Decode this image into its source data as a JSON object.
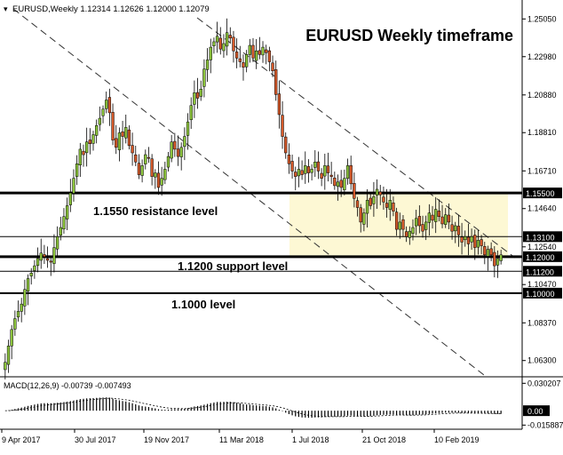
{
  "header": {
    "symbol_info": "EURUSD,Weekly  1.12314 1.12626 1.12000 1.12079",
    "big_title": "EURUSD Weekly timeframe"
  },
  "annotations": {
    "resistance_label": "1.1550 resistance level",
    "support_label": "1.1200 support level",
    "level_1000_label": "1.1000 level"
  },
  "colors": {
    "bull": "#8cc43c",
    "bear": "#d4592a",
    "zone": "#fdf8d4",
    "price_tag_bg": "#000000",
    "price_tag_text": "#ffffff"
  },
  "price_axis": {
    "min": 1.057,
    "max": 1.257,
    "ticks": [
      "1.25050",
      "1.22980",
      "1.20880",
      "1.18810",
      "1.16710",
      "1.14640",
      "1.12540",
      "1.10470",
      "1.08370",
      "1.06300"
    ],
    "tag_levels": [
      "1.15500",
      "1.13100",
      "1.12000",
      "1.11200",
      "1.10000"
    ]
  },
  "time_axis": {
    "labels": [
      "9 Apr 2017",
      "30 Jul 2017",
      "19 Nov 2017",
      "11 Mar 2018",
      "1 Jul 2018",
      "21 Oct 2018",
      "10 Feb 2019"
    ]
  },
  "macd": {
    "label": "MACD(12,26,9) -0.00739 -0.007493",
    "ticks": [
      "0.030207",
      "0.00",
      "-0.015887"
    ],
    "min": -0.0175,
    "max": 0.0315
  },
  "chart_data": {
    "type": "candlestick",
    "title": "EURUSD Weekly timeframe",
    "levels": [
      1.155,
      1.131,
      1.12,
      1.112,
      1.1
    ],
    "closes": [
      1.062,
      1.071,
      1.08,
      1.086,
      1.09,
      1.094,
      1.102,
      1.108,
      1.111,
      1.115,
      1.119,
      1.122,
      1.12,
      1.118,
      1.117,
      1.125,
      1.131,
      1.136,
      1.142,
      1.148,
      1.155,
      1.163,
      1.171,
      1.179,
      1.176,
      1.183,
      1.182,
      1.187,
      1.192,
      1.196,
      1.201,
      1.206,
      1.199,
      1.184,
      1.18,
      1.188,
      1.186,
      1.191,
      1.181,
      1.177,
      1.172,
      1.165,
      1.17,
      1.176,
      1.174,
      1.164,
      1.166,
      1.158,
      1.163,
      1.168,
      1.175,
      1.183,
      1.179,
      1.175,
      1.18,
      1.186,
      1.194,
      1.203,
      1.21,
      1.207,
      1.212,
      1.223,
      1.228,
      1.235,
      1.238,
      1.241,
      1.234,
      1.237,
      1.243,
      1.24,
      1.233,
      1.229,
      1.227,
      1.224,
      1.231,
      1.236,
      1.229,
      1.233,
      1.231,
      1.235,
      1.232,
      1.227,
      1.222,
      1.209,
      1.198,
      1.186,
      1.177,
      1.171,
      1.167,
      1.164,
      1.168,
      1.165,
      1.17,
      1.166,
      1.168,
      1.172,
      1.167,
      1.163,
      1.17,
      1.166,
      1.164,
      1.159,
      1.161,
      1.158,
      1.163,
      1.17,
      1.16,
      1.152,
      1.147,
      1.139,
      1.144,
      1.151,
      1.148,
      1.153,
      1.157,
      1.154,
      1.15,
      1.147,
      1.151,
      1.145,
      1.135,
      1.139,
      1.135,
      1.131,
      1.134,
      1.136,
      1.141,
      1.137,
      1.134,
      1.139,
      1.144,
      1.14,
      1.146,
      1.142,
      1.138,
      1.143,
      1.139,
      1.134,
      1.137,
      1.132,
      1.128,
      1.131,
      1.127,
      1.131,
      1.125,
      1.129,
      1.126,
      1.121,
      1.124,
      1.121,
      1.115,
      1.119,
      1.121
    ]
  }
}
